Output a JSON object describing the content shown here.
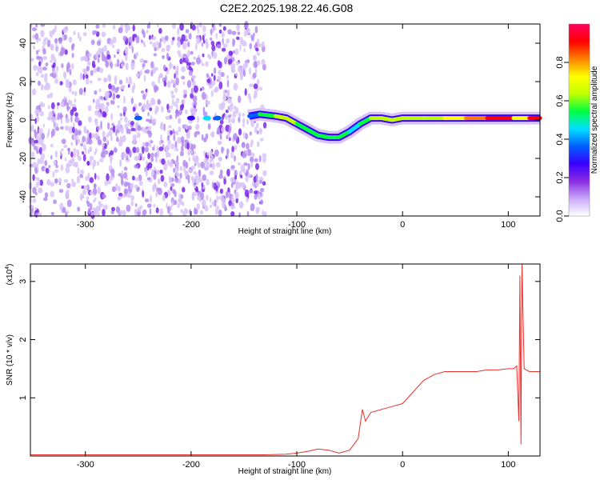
{
  "title": "C2E2.2025.198.22.46.G08",
  "colorbar": {
    "label": "Normalized spectral amplitude",
    "ticks": [
      "0.0",
      "0.2",
      "0.4",
      "0.6",
      "0.8"
    ],
    "tick_values": [
      0.0,
      0.2,
      0.4,
      0.6,
      0.8
    ],
    "range": [
      0.0,
      1.0
    ],
    "colors": [
      "#ffffff",
      "#c8a8f8",
      "#8a2be2",
      "#3a00ff",
      "#0060ff",
      "#00e0ff",
      "#00ff40",
      "#c0ff00",
      "#ffff00",
      "#ff8000",
      "#ff0000",
      "#ff0060"
    ]
  },
  "chart_data": [
    {
      "type": "heatmap",
      "xlabel": "Height of straight line (km)",
      "ylabel": "Frequency (Hz)",
      "xlim": [
        -352,
        130
      ],
      "ylim": [
        -50,
        50
      ],
      "x_ticks": [
        -300,
        -200,
        -100,
        0,
        100
      ],
      "x_tick_labels": [
        "-300",
        "-200",
        "-100",
        "0",
        "100"
      ],
      "y_ticks": [
        -40,
        -20,
        0,
        20,
        40
      ],
      "y_tick_labels": [
        "-40",
        "-20",
        "0",
        "20",
        "40"
      ],
      "noise_region_x": [
        -352,
        -130
      ],
      "ridge": {
        "x": [
          -145,
          -135,
          -120,
          -110,
          -100,
          -90,
          -80,
          -70,
          -60,
          -50,
          -40,
          -30,
          -20,
          -10,
          0,
          20,
          40,
          60,
          80,
          100,
          105,
          112,
          120,
          130
        ],
        "freq": [
          2,
          3,
          2,
          1,
          -2,
          -5,
          -8,
          -9,
          -9,
          -6,
          -2,
          1,
          1,
          0,
          1,
          1,
          1,
          1,
          1,
          1,
          1,
          1,
          1,
          1
        ],
        "amplitude": [
          0.3,
          0.45,
          0.6,
          0.65,
          0.6,
          0.55,
          0.5,
          0.6,
          0.55,
          0.45,
          0.5,
          0.6,
          0.65,
          0.6,
          0.6,
          0.65,
          0.7,
          0.8,
          0.9,
          0.95,
          0.95,
          0.5,
          0.95,
          0.95
        ]
      },
      "low_height_blobs": {
        "x": [
          -250,
          -200,
          -185,
          -175
        ],
        "freq": [
          1,
          1,
          1,
          1
        ],
        "amplitude": [
          0.35,
          0.3,
          0.45,
          0.35
        ]
      }
    },
    {
      "type": "line",
      "xlabel": "Height of straight line (km)",
      "ylabel": "SNR (10 * v/v)",
      "y_multiplier": "(x10",
      "y_multiplier_exp": "4",
      "y_multiplier_close": ")",
      "xlim": [
        -352,
        130
      ],
      "ylim": [
        0,
        3.3
      ],
      "x_ticks": [
        -300,
        -200,
        -100,
        0,
        100
      ],
      "x_tick_labels": [
        "-300",
        "-200",
        "-100",
        "0",
        "100"
      ],
      "y_ticks": [
        1,
        2,
        3
      ],
      "y_tick_labels": [
        "1",
        "2",
        "3"
      ],
      "series": [
        {
          "color": "#e8302c",
          "x": [
            -352,
            -300,
            -200,
            -130,
            -110,
            -100,
            -90,
            -80,
            -70,
            -60,
            -50,
            -42,
            -38,
            -35,
            -30,
            -20,
            -10,
            0,
            10,
            20,
            30,
            40,
            50,
            60,
            70,
            80,
            90,
            100,
            105,
            108,
            110,
            111,
            112,
            113,
            115,
            120,
            130
          ],
          "y": [
            0.02,
            0.02,
            0.02,
            0.02,
            0.03,
            0.05,
            0.08,
            0.12,
            0.1,
            0.05,
            0.1,
            0.3,
            0.8,
            0.6,
            0.75,
            0.8,
            0.85,
            0.9,
            1.1,
            1.3,
            1.4,
            1.45,
            1.45,
            1.45,
            1.45,
            1.48,
            1.48,
            1.5,
            1.5,
            1.55,
            0.6,
            3.1,
            0.2,
            3.3,
            1.5,
            1.45,
            1.45
          ]
        }
      ]
    }
  ]
}
